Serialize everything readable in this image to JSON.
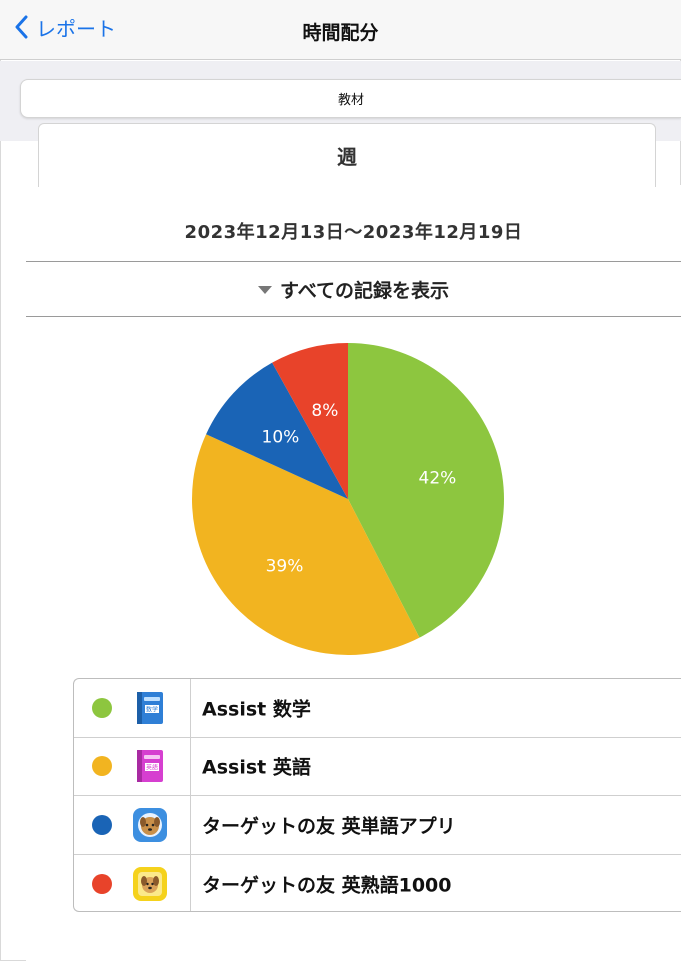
{
  "nav": {
    "back_label": "レポート",
    "title": "時間配分"
  },
  "tabs": {
    "category_label": "教材",
    "period_label": "週"
  },
  "date_range": "2023年12月13日〜2023年12月19日",
  "show_all_label": "すべての記録を表示",
  "chart_data": {
    "type": "pie",
    "slices": [
      {
        "label": "Assist 数学",
        "value": 42,
        "color": "#8dc63f"
      },
      {
        "label": "Assist 英語",
        "value": 39,
        "color": "#f2b420"
      },
      {
        "label": "ターゲットの友 英単語アプリ",
        "value": 10,
        "color": "#1a64b6"
      },
      {
        "label": "ターゲットの友 英熟語1000",
        "value": 8,
        "color": "#e8432a"
      }
    ],
    "value_labels": [
      "42%",
      "39%",
      "10%",
      "8%"
    ]
  },
  "legend": [
    {
      "label": "Assist 数学",
      "color": "#8dc63f",
      "icon": "blue-book-icon"
    },
    {
      "label": "Assist 英語",
      "color": "#f2b420",
      "icon": "magenta-book-icon"
    },
    {
      "label": "ターゲットの友 英単語アプリ",
      "color": "#1a64b6",
      "icon": "dog-app-icon"
    },
    {
      "label": "ターゲットの友 英熟語1000",
      "color": "#e8432a",
      "icon": "dog-app-yellow-icon"
    }
  ]
}
